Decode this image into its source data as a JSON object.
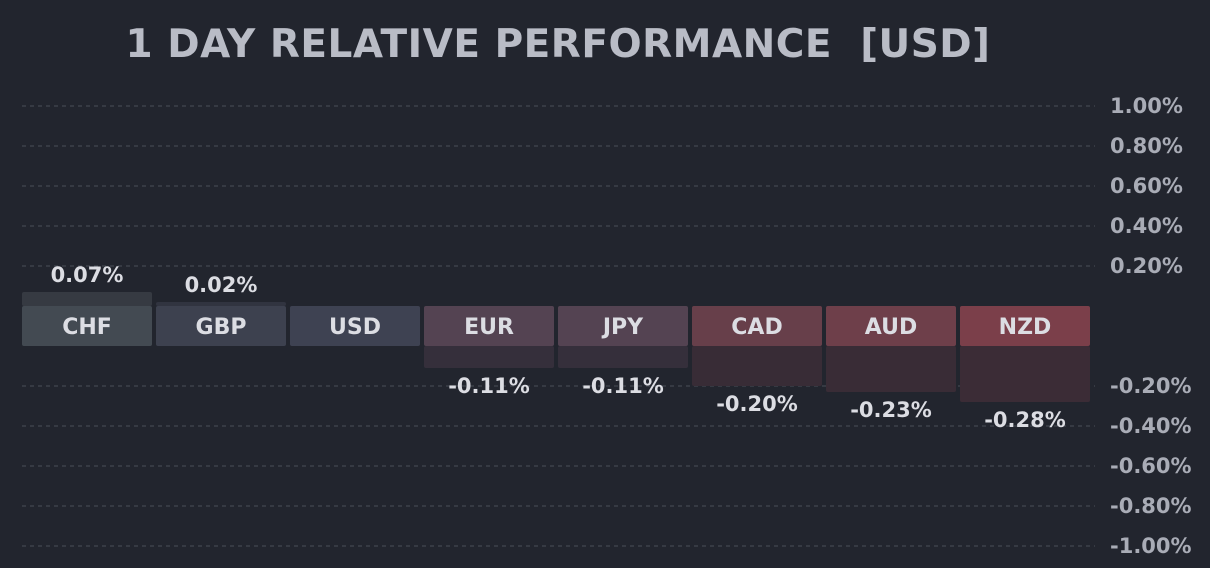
{
  "chart_data": {
    "type": "bar",
    "title": "1 DAY RELATIVE PERFORMANCE  [USD]",
    "xlabel": "",
    "ylabel": "",
    "categories": [
      "CHF",
      "GBP",
      "USD",
      "EUR",
      "JPY",
      "CAD",
      "AUD",
      "NZD"
    ],
    "values": [
      0.07,
      0.02,
      0.0,
      -0.11,
      -0.11,
      -0.2,
      -0.23,
      -0.28
    ],
    "value_labels": [
      "0.07%",
      "0.02%",
      "",
      "-0.11%",
      "-0.11%",
      "-0.20%",
      "-0.23%",
      "-0.28%"
    ],
    "ylim": [
      -1.0,
      1.0
    ],
    "y_ticks": [
      1.0,
      0.8,
      0.6,
      0.4,
      0.2,
      -0.2,
      -0.4,
      -0.6,
      -0.8,
      -1.0
    ],
    "y_tick_labels": [
      "1.00%",
      "0.80%",
      "0.60%",
      "0.40%",
      "0.20%",
      "-0.20%",
      "-0.40%",
      "-0.60%",
      "-0.80%",
      "-1.00%"
    ],
    "grid": true,
    "label_colors": [
      "#434a52",
      "#3d414f",
      "#3e4252",
      "#544352",
      "#544352",
      "#673f4a",
      "#6e3f4a",
      "#7b3f4a"
    ],
    "bar_colors": [
      "#363a42",
      "#313440",
      "#313440",
      "#352f3b",
      "#352f3b",
      "#382c36",
      "#392c36",
      "#3b2c36"
    ],
    "text_color": "#dcdde3",
    "axis_text_color": "#a9acb6",
    "grid_color": "#4a4e58"
  }
}
